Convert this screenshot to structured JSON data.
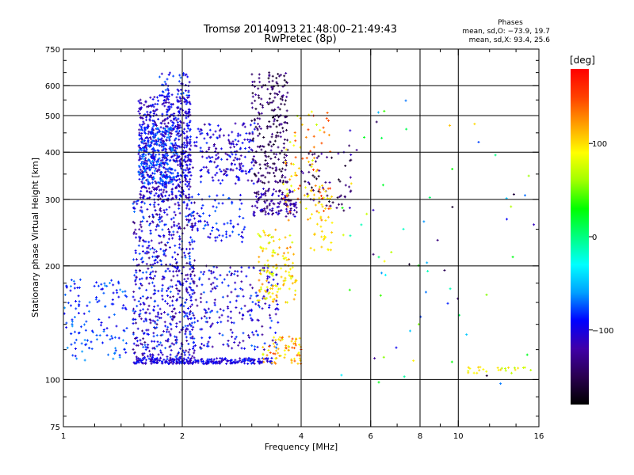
{
  "chart_data": {
    "type": "scatter",
    "title": "Tromsø 20140913 21:48:00–21:49:43",
    "subtitle": "RwPretec (8p)",
    "xlabel": "Frequency [MHz]",
    "ylabel": "Stationary phase Virtual Height [km]",
    "x_scale": "log",
    "y_scale": "log",
    "xlim": [
      1,
      16
    ],
    "ylim": [
      75,
      750
    ],
    "x_ticks": [
      1,
      2,
      4,
      6,
      8,
      10,
      16
    ],
    "x_tick_labels": [
      "1",
      "2",
      "4",
      "6",
      "8",
      "10",
      "16"
    ],
    "x_minor_ticks": [
      1.2,
      1.4,
      1.6,
      1.8,
      2.5,
      3,
      3.5,
      5,
      7,
      9,
      12,
      14
    ],
    "x_grid": [
      2,
      4,
      6,
      8,
      10
    ],
    "y_ticks": [
      75,
      100,
      200,
      300,
      400,
      500,
      600,
      750
    ],
    "y_tick_labels": [
      "75",
      "100",
      "200",
      "300",
      "400",
      "500",
      "600",
      "750"
    ],
    "y_minor_ticks": [
      80,
      90,
      120,
      140,
      160,
      180,
      250,
      350,
      450,
      550,
      650,
      700
    ],
    "y_grid": [
      100,
      200,
      300,
      400,
      500,
      600
    ],
    "grid": true,
    "annotation": {
      "heading": "Phases",
      "line_o": "mean, sd,O: −73.9, 19.7",
      "line_x": "mean, sd,X:  93.4, 25.6"
    },
    "colorbar": {
      "label": "[deg]",
      "range": [
        -180,
        180
      ],
      "ticks": [
        -100,
        0,
        100
      ],
      "tick_labels": [
        "−100",
        "0",
        "100"
      ],
      "colors": [
        "#000000",
        "#2a0050",
        "#4000a8",
        "#0000ff",
        "#00a0ff",
        "#00ffff",
        "#00ff80",
        "#00ff00",
        "#a0ff00",
        "#ffff00",
        "#ffa000",
        "#ff4000",
        "#ff0000"
      ]
    },
    "clusters": [
      {
        "freq": [
          1.55,
          2.1
        ],
        "height": [
          300,
          560
        ],
        "phase": [
          -130,
          -80
        ],
        "count": 700
      },
      {
        "freq": [
          1.55,
          1.95
        ],
        "height": [
          330,
          470
        ],
        "phase": [
          -90,
          -60
        ],
        "count": 220
      },
      {
        "freq": [
          1.5,
          2.15
        ],
        "height": [
          112,
          300
        ],
        "phase": [
          -140,
          -70
        ],
        "count": 650
      },
      {
        "freq": [
          1.75,
          2.1
        ],
        "height": [
          560,
          650
        ],
        "phase": [
          -110,
          -70
        ],
        "count": 50
      },
      {
        "freq": [
          1.0,
          1.45
        ],
        "height": [
          112,
          185
        ],
        "phase": [
          -100,
          -60
        ],
        "count": 140
      },
      {
        "freq": [
          1.5,
          3.4
        ],
        "height": [
          110,
          114
        ],
        "phase": [
          -120,
          -80
        ],
        "count": 260
      },
      {
        "freq": [
          2.05,
          3.05
        ],
        "height": [
          330,
          480
        ],
        "phase": [
          -130,
          -80
        ],
        "count": 200
      },
      {
        "freq": [
          2.1,
          3.5
        ],
        "height": [
          120,
          200
        ],
        "phase": [
          -130,
          -70
        ],
        "count": 230
      },
      {
        "freq": [
          2.1,
          2.9
        ],
        "height": [
          230,
          310
        ],
        "phase": [
          -110,
          -70
        ],
        "count": 80
      },
      {
        "freq": [
          3.0,
          3.7
        ],
        "height": [
          330,
          650
        ],
        "phase": [
          -170,
          -120
        ],
        "count": 240
      },
      {
        "freq": [
          3.0,
          3.9
        ],
        "height": [
          270,
          320
        ],
        "phase": [
          -150,
          -100
        ],
        "count": 130
      },
      {
        "freq": [
          3.1,
          3.9
        ],
        "height": [
          160,
          250
        ],
        "phase": [
          70,
          130
        ],
        "count": 130
      },
      {
        "freq": [
          3.2,
          4.0
        ],
        "height": [
          110,
          130
        ],
        "phase": [
          80,
          150
        ],
        "count": 70
      },
      {
        "freq": [
          3.6,
          4.8
        ],
        "height": [
          260,
          520
        ],
        "phase": [
          70,
          160
        ],
        "count": 90
      },
      {
        "freq": [
          4.0,
          5.4
        ],
        "height": [
          280,
          400
        ],
        "phase": [
          -170,
          -110
        ],
        "count": 60
      },
      {
        "freq": [
          4.2,
          4.8
        ],
        "height": [
          220,
          320
        ],
        "phase": [
          90,
          110
        ],
        "count": 40
      },
      {
        "freq": [
          5.0,
          16.0
        ],
        "height": [
          90,
          560
        ],
        "phase": [
          -170,
          120
        ],
        "count": 70
      },
      {
        "freq": [
          10.5,
          15.5
        ],
        "height": [
          104,
          108
        ],
        "phase": [
          60,
          110
        ],
        "count": 25
      }
    ]
  }
}
